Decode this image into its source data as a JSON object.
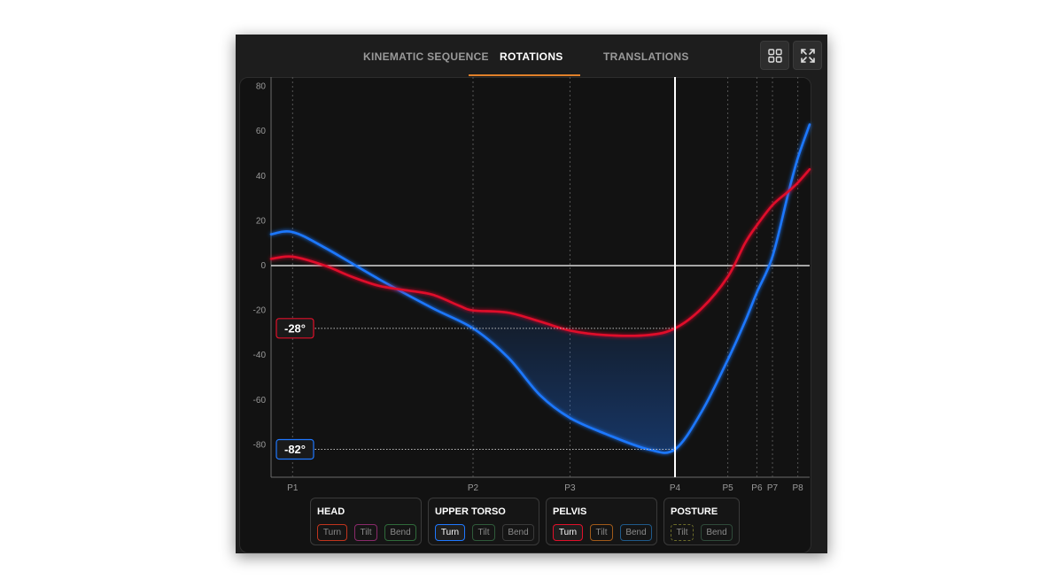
{
  "tabs": [
    {
      "label": "KINEMATIC SEQUENCE",
      "active": false
    },
    {
      "label": "ROTATIONS",
      "active": true
    },
    {
      "label": "TRANSLATIONS",
      "active": false
    }
  ],
  "toolbar": {
    "grid_icon": "grid-icon",
    "expand_icon": "expand-icon"
  },
  "colors": {
    "accent": "#e0802a",
    "upper_torso": "#1f78ff",
    "pelvis": "#e0102a",
    "background": "#121212"
  },
  "chart_data": {
    "type": "line",
    "ylim": [
      -95,
      85
    ],
    "y_ticks": [
      "80",
      "60",
      "40",
      "20",
      "0",
      "-20",
      "-40",
      "-60",
      "-80"
    ],
    "phase_markers": [
      {
        "label": "P1",
        "t": 0.04
      },
      {
        "label": "P2",
        "t": 0.375
      },
      {
        "label": "P3",
        "t": 0.555
      },
      {
        "label": "P4",
        "t": 0.75
      },
      {
        "label": "P5",
        "t": 0.848
      },
      {
        "label": "P6",
        "t": 0.902
      },
      {
        "label": "P7",
        "t": 0.931
      },
      {
        "label": "P8",
        "t": 0.978
      }
    ],
    "cursor_t": 0.75,
    "series": [
      {
        "name": "Upper Torso Turn",
        "color": "#1f78ff",
        "x": [
          0,
          0.04,
          0.1,
          0.2,
          0.3,
          0.375,
          0.44,
          0.5,
          0.555,
          0.62,
          0.7,
          0.75,
          0.8,
          0.848,
          0.88,
          0.902,
          0.931,
          0.96,
          0.978,
          1.0
        ],
        "y": [
          14,
          15,
          8,
          -6,
          -19,
          -28,
          -41,
          -58,
          -68,
          -75,
          -82,
          -82,
          -65,
          -42,
          -25,
          -12,
          4,
          32,
          48,
          63
        ]
      },
      {
        "name": "Pelvis Turn",
        "color": "#e0102a",
        "x": [
          0,
          0.04,
          0.1,
          0.15,
          0.2,
          0.25,
          0.3,
          0.35,
          0.375,
          0.44,
          0.5,
          0.555,
          0.62,
          0.7,
          0.75,
          0.8,
          0.848,
          0.88,
          0.902,
          0.931,
          0.96,
          0.978,
          1.0
        ],
        "y": [
          3,
          4,
          0,
          -5,
          -9,
          -11,
          -13,
          -18,
          -20,
          -21,
          -25,
          -29,
          -31,
          -31,
          -28,
          -19,
          -5,
          10,
          18,
          27,
          33,
          37,
          43
        ]
      }
    ],
    "labels": [
      {
        "text": "-28°",
        "value": -28,
        "color": "#e0102a"
      },
      {
        "text": "-82°",
        "value": -82,
        "color": "#1f78ff"
      }
    ]
  },
  "legend": [
    {
      "title": "HEAD",
      "chips": [
        {
          "label": "Turn",
          "color": "#c0341d",
          "active": false
        },
        {
          "label": "Tilt",
          "color": "#8a2a6a",
          "active": false
        },
        {
          "label": "Bend",
          "color": "#2f6a3a",
          "active": false
        }
      ]
    },
    {
      "title": "UPPER TORSO",
      "chips": [
        {
          "label": "Turn",
          "color": "#1f78ff",
          "active": true
        },
        {
          "label": "Tilt",
          "color": "#2f5a3a",
          "active": false
        },
        {
          "label": "Bend",
          "color": "#3a3a3a",
          "active": false
        }
      ]
    },
    {
      "title": "PELVIS",
      "chips": [
        {
          "label": "Turn",
          "color": "#e0102a",
          "active": true
        },
        {
          "label": "Tilt",
          "color": "#a05a1a",
          "active": false
        },
        {
          "label": "Bend",
          "color": "#1f5a8a",
          "active": false
        }
      ]
    },
    {
      "title": "POSTURE",
      "chips": [
        {
          "label": "Tilt",
          "color": "#6a6a2a",
          "active": false,
          "dashed": true
        },
        {
          "label": "Bend",
          "color": "#2f4a3a",
          "active": false
        }
      ]
    }
  ]
}
